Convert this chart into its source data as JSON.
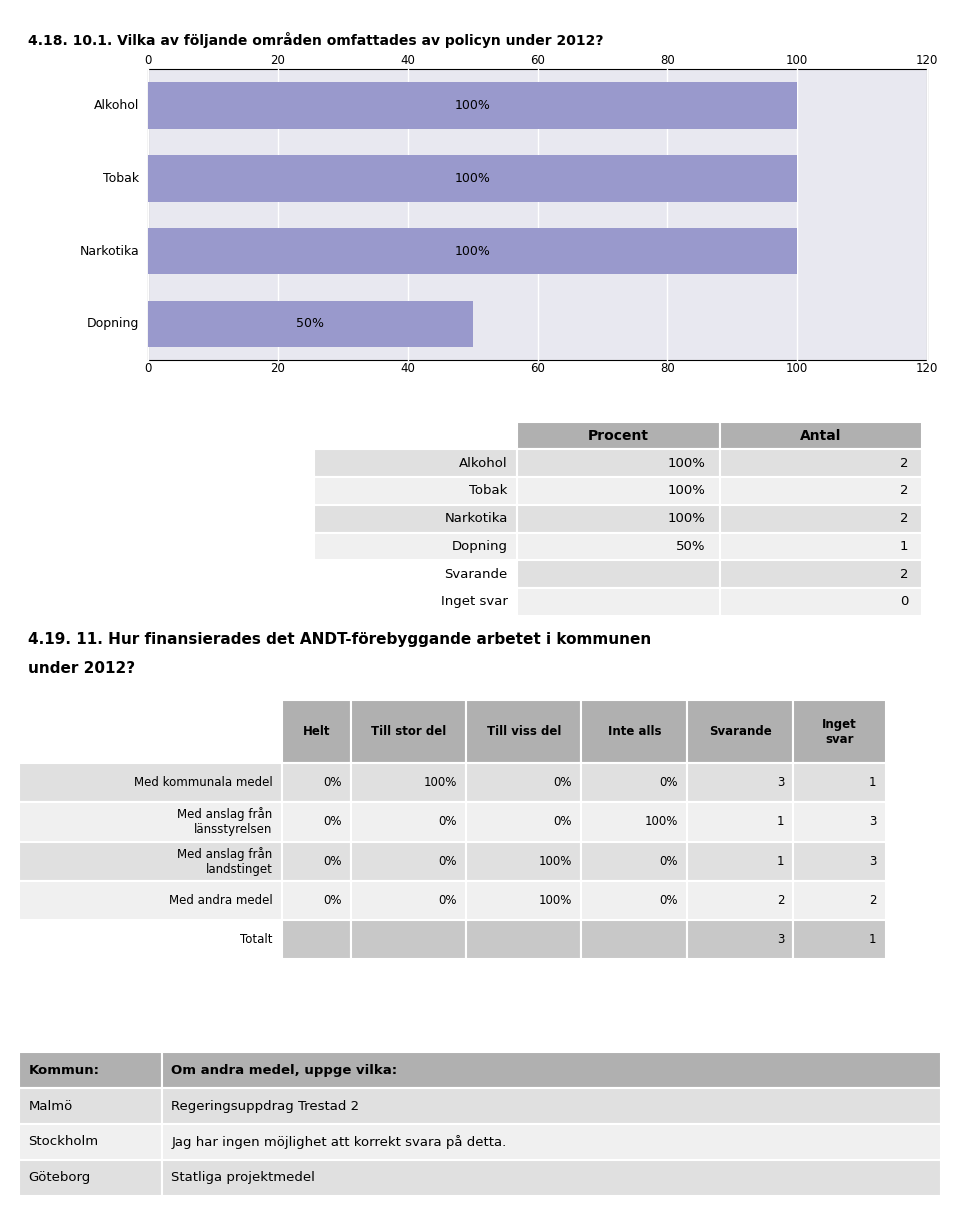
{
  "title1": "4.18. 10.1. Vilka av följande områden omfattades av policyn under 2012?",
  "bar_categories": [
    "Alkohol",
    "Tobak",
    "Narkotika",
    "Dopning"
  ],
  "bar_values": [
    100,
    100,
    100,
    50
  ],
  "bar_color": "#9999cc",
  "chart_bg": "#d4d4d4",
  "plot_bg": "#e8e8f0",
  "xlim": [
    0,
    120
  ],
  "xticks": [
    0,
    20,
    40,
    60,
    80,
    100,
    120
  ],
  "table1_headers": [
    "",
    "Procent",
    "Antal"
  ],
  "table1_rows": [
    [
      "Alkohol",
      "100%",
      "2"
    ],
    [
      "Tobak",
      "100%",
      "2"
    ],
    [
      "Narkotika",
      "100%",
      "2"
    ],
    [
      "Dopning",
      "50%",
      "1"
    ],
    [
      "Svarande",
      "",
      "2"
    ],
    [
      "Inget svar",
      "",
      "0"
    ]
  ],
  "title2": "4.19. 11. Hur finansierades det ANDT-förebyggande arbetet i kommunen under 2012?",
  "table2_headers": [
    "",
    "Helt",
    "Till stor del",
    "Till viss del",
    "Inte alls",
    "Svarande",
    "Inget\nsvar"
  ],
  "table2_rows": [
    [
      "Med kommunala medel",
      "0%",
      "100%",
      "0%",
      "0%",
      "3",
      "1"
    ],
    [
      "Med anslag från\nlänsstyrelsen",
      "0%",
      "0%",
      "0%",
      "100%",
      "1",
      "3"
    ],
    [
      "Med anslag från\nlandstinget",
      "0%",
      "0%",
      "100%",
      "0%",
      "1",
      "3"
    ],
    [
      "Med andra medel",
      "0%",
      "0%",
      "100%",
      "0%",
      "2",
      "2"
    ],
    [
      "Totalt",
      "",
      "",
      "",
      "",
      "3",
      "1"
    ]
  ],
  "table3_headers": [
    "Kommun:",
    "Om andra medel, uppge vilka:"
  ],
  "table3_rows": [
    [
      "Malmö",
      "Regeringsuppdrag Trestad 2"
    ],
    [
      "Stockholm",
      "Jag har ingen möjlighet att korrekt svara på detta."
    ],
    [
      "Göteborg",
      "Statliga projektmedel"
    ]
  ],
  "header_bg": "#b0b0b0",
  "row_bg_even": "#e0e0e0",
  "row_bg_odd": "#f0f0f0",
  "totalt_bg": "#c8c8c8"
}
